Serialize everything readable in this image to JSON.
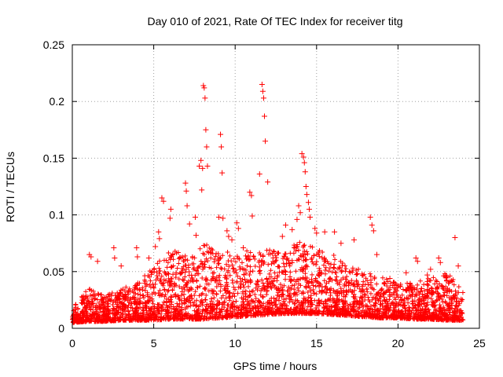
{
  "chart_data": {
    "type": "scatter",
    "title": "Day 010 of 2021, Rate Of TEC Index for receiver titg",
    "xlabel": "GPS time / hours",
    "ylabel": "ROTI / TECUs",
    "xlim": [
      0,
      25
    ],
    "ylim": [
      0,
      0.25
    ],
    "xticks": [
      "0",
      "5",
      "10",
      "15",
      "20",
      "25"
    ],
    "xtick_values": [
      0,
      5,
      10,
      15,
      20,
      25
    ],
    "yticks": [
      "0",
      "0.05",
      "0.1",
      "0.15",
      "0.2",
      "0.25"
    ],
    "ytick_values": [
      0,
      0.05,
      0.1,
      0.15,
      0.2,
      0.25
    ],
    "grid": true,
    "series": [
      {
        "name": "ROTI",
        "color": "#ff0000",
        "marker": "plus",
        "x": [
          1.05,
          1.15,
          1.55,
          2.55,
          2.6,
          3.0,
          3.95,
          4.0,
          4.7,
          5.1,
          5.3,
          5.35,
          5.5,
          5.6,
          6.0,
          6.05,
          6.95,
          7.0,
          7.05,
          7.2,
          7.55,
          7.6,
          7.8,
          7.9,
          7.95,
          8.0,
          8.05,
          8.1,
          8.15,
          8.2,
          8.25,
          8.3,
          9.0,
          9.1,
          9.15,
          9.2,
          9.25,
          9.5,
          9.6,
          9.8,
          10.1,
          10.2,
          10.5,
          10.9,
          11.0,
          11.05,
          11.5,
          11.65,
          11.7,
          11.75,
          11.8,
          11.85,
          12.0,
          12.9,
          13.1,
          13.5,
          13.8,
          13.9,
          14.0,
          14.1,
          14.2,
          14.25,
          14.3,
          14.35,
          14.4,
          14.5,
          14.55,
          14.6,
          14.9,
          15.0,
          15.5,
          16.1,
          16.5,
          17.3,
          18.3,
          18.4,
          18.5,
          18.7,
          19.5,
          20.5,
          21.1,
          21.2,
          21.8,
          22.0,
          22.5,
          22.6,
          23.0,
          23.1,
          23.5,
          23.7
        ],
        "y": [
          0.065,
          0.063,
          0.059,
          0.071,
          0.062,
          0.055,
          0.071,
          0.063,
          0.062,
          0.072,
          0.085,
          0.079,
          0.115,
          0.112,
          0.097,
          0.105,
          0.128,
          0.121,
          0.108,
          0.092,
          0.098,
          0.082,
          0.143,
          0.148,
          0.122,
          0.141,
          0.214,
          0.212,
          0.203,
          0.175,
          0.16,
          0.143,
          0.098,
          0.171,
          0.16,
          0.137,
          0.097,
          0.086,
          0.081,
          0.078,
          0.093,
          0.088,
          0.071,
          0.12,
          0.117,
          0.099,
          0.136,
          0.215,
          0.209,
          0.203,
          0.187,
          0.165,
          0.129,
          0.081,
          0.091,
          0.087,
          0.096,
          0.108,
          0.102,
          0.154,
          0.151,
          0.146,
          0.138,
          0.125,
          0.118,
          0.111,
          0.105,
          0.098,
          0.088,
          0.084,
          0.085,
          0.085,
          0.075,
          0.078,
          0.098,
          0.091,
          0.086,
          0.065,
          0.044,
          0.049,
          0.062,
          0.059,
          0.047,
          0.052,
          0.062,
          0.058,
          0.045,
          0.04,
          0.08,
          0.055
        ]
      }
    ],
    "background_density": {
      "description": "Dense cloud of ROTI samples across the day (y in TECUs, envelope by hour)",
      "hours": [
        0,
        1,
        2,
        3,
        4,
        5,
        6,
        7,
        8,
        9,
        10,
        11,
        12,
        13,
        14,
        15,
        16,
        17,
        18,
        19,
        20,
        21,
        22,
        23,
        24
      ],
      "floor": [
        0.005,
        0.006,
        0.006,
        0.007,
        0.007,
        0.007,
        0.008,
        0.008,
        0.008,
        0.009,
        0.01,
        0.011,
        0.012,
        0.013,
        0.013,
        0.013,
        0.012,
        0.011,
        0.01,
        0.009,
        0.009,
        0.008,
        0.008,
        0.007,
        0.007
      ],
      "upper": [
        0.02,
        0.035,
        0.03,
        0.035,
        0.04,
        0.055,
        0.07,
        0.065,
        0.075,
        0.07,
        0.065,
        0.07,
        0.07,
        0.065,
        0.08,
        0.07,
        0.065,
        0.055,
        0.05,
        0.045,
        0.04,
        0.04,
        0.045,
        0.05,
        0.035
      ]
    }
  }
}
